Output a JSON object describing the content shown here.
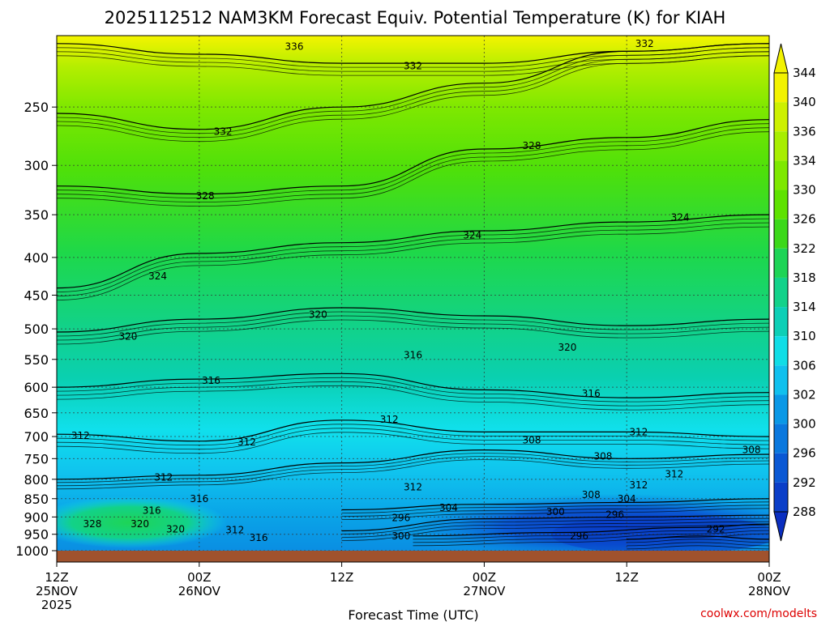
{
  "chart_data": {
    "type": "heatmap",
    "title": "2025112512 NAM3KM Forecast Equiv. Potential Temperature (K) for KIAH",
    "xlabel": "Forecast Time (UTC)",
    "ylabel": "",
    "y_ticks": [
      250,
      300,
      350,
      400,
      450,
      500,
      550,
      600,
      650,
      700,
      750,
      800,
      850,
      900,
      950,
      1000
    ],
    "x_ticks": [
      {
        "hours": 0,
        "line1": "12Z",
        "line2": "25NOV",
        "line3": "2025"
      },
      {
        "hours": 12,
        "line1": "00Z",
        "line2": "26NOV",
        "line3": ""
      },
      {
        "hours": 24,
        "line1": "12Z",
        "line2": "",
        "line3": ""
      },
      {
        "hours": 36,
        "line1": "00Z",
        "line2": "27NOV",
        "line3": ""
      },
      {
        "hours": 48,
        "line1": "12Z",
        "line2": "",
        "line3": ""
      },
      {
        "hours": 60,
        "line1": "00Z",
        "line2": "28NOV",
        "line3": ""
      }
    ],
    "colorbar": {
      "labels": [
        344,
        340,
        336,
        334,
        330,
        326,
        322,
        318,
        314,
        310,
        306,
        302,
        300,
        296,
        292,
        288
      ],
      "colors": [
        "#f2f200",
        "#cdf000",
        "#a8ee00",
        "#7ee800",
        "#5ee200",
        "#3cd81a",
        "#1ed456",
        "#12d28a",
        "#0ccfb6",
        "#10dde6",
        "#10c0ee",
        "#0a98e6",
        "#0a78de",
        "#0a58d4",
        "#0a3ec8"
      ]
    },
    "series": [
      {
        "level": 336,
        "values": [
          {
            "t": 0,
            "p": 205
          },
          {
            "t": 12,
            "p": 212
          },
          {
            "t": 24,
            "p": 218
          },
          {
            "t": 36,
            "p": 218
          },
          {
            "t": 48,
            "p": 210
          },
          {
            "t": 60,
            "p": 205
          }
        ]
      },
      {
        "level": 332,
        "values": [
          {
            "t": 0,
            "p": 255
          },
          {
            "t": 12,
            "p": 268
          },
          {
            "t": 24,
            "p": 250
          },
          {
            "t": 36,
            "p": 232
          },
          {
            "t": 48,
            "p": 210
          },
          {
            "t": 60,
            "p": 205
          }
        ]
      },
      {
        "level": 328,
        "values": [
          {
            "t": 0,
            "p": 320
          },
          {
            "t": 12,
            "p": 328
          },
          {
            "t": 24,
            "p": 320
          },
          {
            "t": 36,
            "p": 285
          },
          {
            "t": 48,
            "p": 275
          },
          {
            "t": 60,
            "p": 260
          }
        ]
      },
      {
        "level": 324,
        "values": [
          {
            "t": 0,
            "p": 440
          },
          {
            "t": 12,
            "p": 395
          },
          {
            "t": 24,
            "p": 382
          },
          {
            "t": 36,
            "p": 368
          },
          {
            "t": 48,
            "p": 358
          },
          {
            "t": 60,
            "p": 350
          }
        ]
      },
      {
        "level": 320,
        "values": [
          {
            "t": 0,
            "p": 505
          },
          {
            "t": 12,
            "p": 485
          },
          {
            "t": 24,
            "p": 468
          },
          {
            "t": 36,
            "p": 480
          },
          {
            "t": 48,
            "p": 495
          },
          {
            "t": 60,
            "p": 485
          }
        ]
      },
      {
        "level": 316,
        "values": [
          {
            "t": 0,
            "p": 600
          },
          {
            "t": 12,
            "p": 585
          },
          {
            "t": 24,
            "p": 575
          },
          {
            "t": 36,
            "p": 605
          },
          {
            "t": 48,
            "p": 620
          },
          {
            "t": 60,
            "p": 610
          }
        ]
      },
      {
        "level": 312,
        "values": [
          {
            "t": 0,
            "p": 695
          },
          {
            "t": 12,
            "p": 710
          },
          {
            "t": 24,
            "p": 665
          },
          {
            "t": 36,
            "p": 690
          },
          {
            "t": 48,
            "p": 690
          },
          {
            "t": 60,
            "p": 700
          }
        ]
      },
      {
        "level": 308,
        "values": [
          {
            "t": 0,
            "p": 800
          },
          {
            "t": 12,
            "p": 790
          },
          {
            "t": 24,
            "p": 760
          },
          {
            "t": 36,
            "p": 730
          },
          {
            "t": 48,
            "p": 750
          },
          {
            "t": 60,
            "p": 740
          }
        ]
      },
      {
        "level": 304,
        "values": [
          {
            "t": 24,
            "p": 880
          },
          {
            "t": 36,
            "p": 865
          },
          {
            "t": 48,
            "p": 860
          },
          {
            "t": 60,
            "p": 850
          }
        ]
      },
      {
        "level": 300,
        "values": [
          {
            "t": 24,
            "p": 940
          },
          {
            "t": 36,
            "p": 905
          },
          {
            "t": 48,
            "p": 900
          },
          {
            "t": 60,
            "p": 895
          }
        ]
      },
      {
        "level": 296,
        "values": [
          {
            "t": 30,
            "p": 955
          },
          {
            "t": 42,
            "p": 945
          },
          {
            "t": 54,
            "p": 930
          },
          {
            "t": 60,
            "p": 920
          }
        ]
      },
      {
        "level": 292,
        "values": [
          {
            "t": 48,
            "p": 965
          },
          {
            "t": 54,
            "p": 955
          },
          {
            "t": 60,
            "p": 965
          }
        ]
      }
    ],
    "contour_labels": [
      {
        "text": "336",
        "t": 20.0,
        "p": 207
      },
      {
        "text": "332",
        "t": 49.5,
        "p": 205
      },
      {
        "text": "332",
        "t": 30.0,
        "p": 220
      },
      {
        "text": "332",
        "t": 14.0,
        "p": 270
      },
      {
        "text": "328",
        "t": 40.0,
        "p": 282
      },
      {
        "text": "328",
        "t": 12.5,
        "p": 330
      },
      {
        "text": "324",
        "t": 52.5,
        "p": 353
      },
      {
        "text": "324",
        "t": 35.0,
        "p": 373
      },
      {
        "text": "324",
        "t": 8.5,
        "p": 424
      },
      {
        "text": "320",
        "t": 22.0,
        "p": 478
      },
      {
        "text": "320",
        "t": 6.0,
        "p": 512
      },
      {
        "text": "320",
        "t": 43.0,
        "p": 530
      },
      {
        "text": "316",
        "t": 30.0,
        "p": 543
      },
      {
        "text": "316",
        "t": 13.0,
        "p": 588
      },
      {
        "text": "316",
        "t": 45.0,
        "p": 612
      },
      {
        "text": "312",
        "t": 28.0,
        "p": 664
      },
      {
        "text": "312",
        "t": 2.0,
        "p": 698
      },
      {
        "text": "312",
        "t": 49.0,
        "p": 690
      },
      {
        "text": "312",
        "t": 16.0,
        "p": 712
      },
      {
        "text": "308",
        "t": 40.0,
        "p": 708
      },
      {
        "text": "308",
        "t": 46.0,
        "p": 745
      },
      {
        "text": "308",
        "t": 58.5,
        "p": 730
      },
      {
        "text": "312",
        "t": 9.0,
        "p": 795
      },
      {
        "text": "312",
        "t": 52.0,
        "p": 787
      },
      {
        "text": "312",
        "t": 49.0,
        "p": 815
      },
      {
        "text": "312",
        "t": 30.0,
        "p": 820
      },
      {
        "text": "316",
        "t": 12.0,
        "p": 850
      },
      {
        "text": "308",
        "t": 45.0,
        "p": 840
      },
      {
        "text": "304",
        "t": 48.0,
        "p": 850
      },
      {
        "text": "304",
        "t": 33.0,
        "p": 875
      },
      {
        "text": "316",
        "t": 8.0,
        "p": 882
      },
      {
        "text": "300",
        "t": 42.0,
        "p": 886
      },
      {
        "text": "296",
        "t": 47.0,
        "p": 893
      },
      {
        "text": "296",
        "t": 29.0,
        "p": 903
      },
      {
        "text": "328",
        "t": 3.0,
        "p": 920
      },
      {
        "text": "320",
        "t": 7.0,
        "p": 920
      },
      {
        "text": "320",
        "t": 10.0,
        "p": 935
      },
      {
        "text": "312",
        "t": 15.0,
        "p": 937
      },
      {
        "text": "300",
        "t": 29.0,
        "p": 955
      },
      {
        "text": "316",
        "t": 17.0,
        "p": 960
      },
      {
        "text": "296",
        "t": 44.0,
        "p": 955
      },
      {
        "text": "292",
        "t": 55.5,
        "p": 935
      }
    ]
  },
  "credit": "coolwx.com/modelts"
}
